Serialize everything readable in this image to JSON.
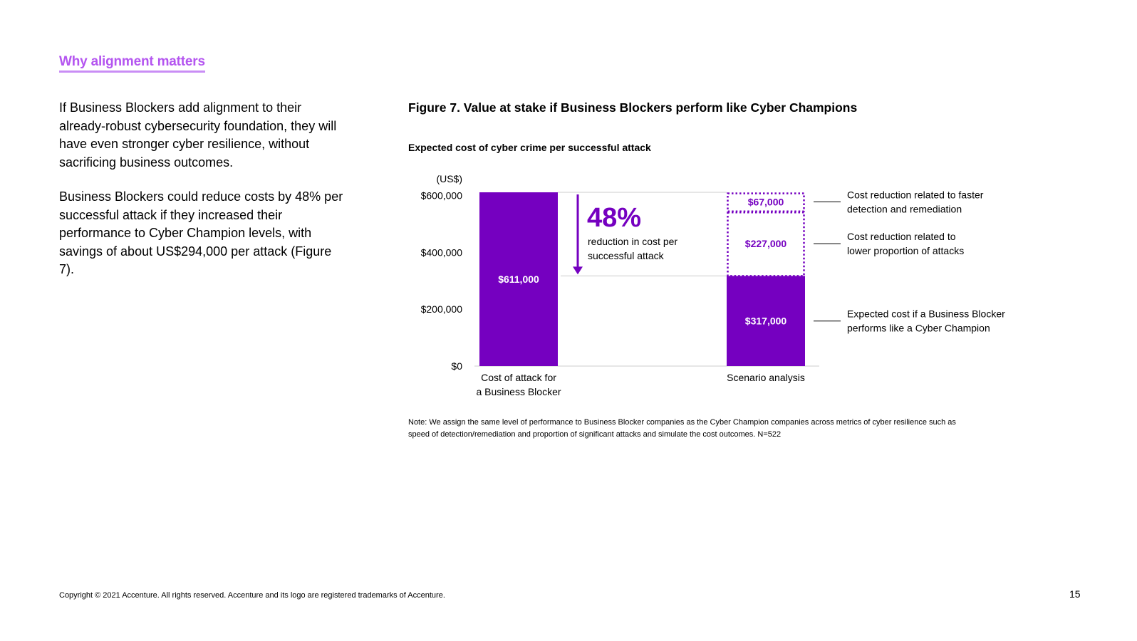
{
  "section_heading": "Why alignment matters",
  "paragraphs": [
    "If Business Blockers add alignment to their already-robust cybersecurity foundation, they will have even stronger cyber resilience, without sacrificing business outcomes.",
    "Business Blockers could reduce costs by 48% per successful attack if they increased their performance to Cyber Champion levels, with savings of about US$294,000 per attack (Figure 7)."
  ],
  "figure_title": "Figure 7. Value at stake if Business Blockers perform like Cyber Champions",
  "note": "Note: We assign the same level of performance to Business Blocker companies as the Cyber Champion companies across metrics of cyber resilience such as speed of detection/remediation and proportion of significant attacks and simulate the cost outcomes. N=522",
  "copyright": "Copyright © 2021 Accenture. All rights reserved. Accenture and its logo are registered trademarks of Accenture.",
  "page_number": "15",
  "colors": {
    "accent_purple": "#7500c0",
    "heading_purple": "#b455f0",
    "grid_gray": "#cccccc"
  },
  "chart_data": {
    "type": "bar",
    "title": "Expected cost of cyber crime per successful attack",
    "unit_label": "(US$)",
    "ylim": [
      0,
      611000
    ],
    "yticks": [
      {
        "value": 0,
        "label": "$0"
      },
      {
        "value": 200000,
        "label": "$200,000"
      },
      {
        "value": 400000,
        "label": "$400,000"
      },
      {
        "value": 600000,
        "label": "$600,000"
      }
    ],
    "categories": [
      "Cost of attack for a Business Blocker",
      "Scenario analysis"
    ],
    "category_label_lines": [
      [
        "Cost of attack for",
        "a Business Blocker"
      ],
      [
        "Scenario analysis"
      ]
    ],
    "bars": [
      {
        "category": "Cost of attack for a Business Blocker",
        "value": 611000,
        "label": "$611,000"
      }
    ],
    "stacked_segments": [
      {
        "value": 317000,
        "label": "$317,000",
        "style": "solid",
        "annotation_lines": [
          "Expected cost if a Business Blocker",
          "performs like a Cyber Champion"
        ]
      },
      {
        "value": 227000,
        "label": "$227,000",
        "style": "dotted",
        "annotation_lines": [
          "Cost reduction related to",
          "lower proportion of attacks"
        ]
      },
      {
        "value": 67000,
        "label": "$67,000",
        "style": "dotted",
        "annotation_lines": [
          "Cost reduction related to faster",
          "detection and remediation"
        ]
      }
    ],
    "callout": {
      "value": "48%",
      "text_lines": [
        "reduction in cost per",
        "successful attack"
      ]
    }
  }
}
